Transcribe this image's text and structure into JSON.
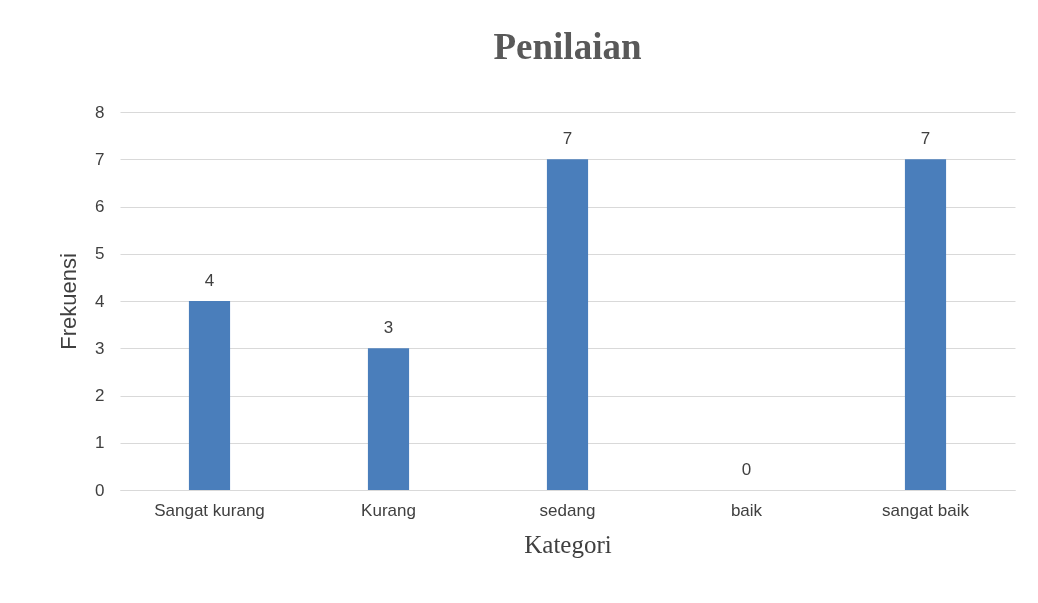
{
  "chart_data": {
    "type": "bar",
    "title": "Penilaian",
    "xlabel": "Kategori",
    "ylabel": "Frekuensi",
    "categories": [
      "Sangat kurang",
      "Kurang",
      "sedang",
      "baik",
      "sangat baik"
    ],
    "values": [
      4,
      3,
      7,
      0,
      7
    ],
    "color": "#4a7ebb",
    "ylim": [
      0,
      8
    ],
    "yticks": [
      0,
      1,
      2,
      3,
      4,
      5,
      6,
      7,
      8
    ],
    "grid": "y",
    "data_labels": true
  }
}
